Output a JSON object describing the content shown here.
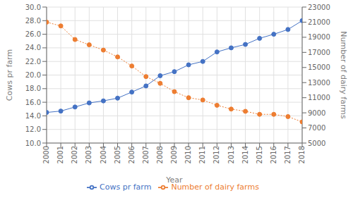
{
  "chart_data": {
    "type": "line",
    "xlabel": "Year",
    "ylabel": "Cows pr farm",
    "y2label": "Number of dairy farms",
    "x": [
      2000,
      2001,
      2002,
      2003,
      2004,
      2005,
      2006,
      2007,
      2008,
      2009,
      2010,
      2011,
      2012,
      2013,
      2014,
      2015,
      2016,
      2017,
      2018
    ],
    "xlim": [
      2000,
      2018
    ],
    "xticks": [
      2000,
      2001,
      2002,
      2003,
      2004,
      2005,
      2006,
      2007,
      2008,
      2009,
      2010,
      2011,
      2012,
      2013,
      2014,
      2015,
      2016,
      2017,
      2018
    ],
    "ylim": [
      10.0,
      30.0
    ],
    "yticks": [
      {
        "value": 10.0,
        "label": "10.0"
      },
      {
        "value": 12.0,
        "label": "12.0"
      },
      {
        "value": 14.0,
        "label": "14.0"
      },
      {
        "value": 16.0,
        "label": "16.0"
      },
      {
        "value": 18.0,
        "label": "18.0"
      },
      {
        "value": 20.0,
        "label": "20.0"
      },
      {
        "value": 22.0,
        "label": "22.0"
      },
      {
        "value": 24.0,
        "label": "24.0"
      },
      {
        "value": 26.0,
        "label": "26.0"
      },
      {
        "value": 28.0,
        "label": "28.0"
      },
      {
        "value": 30.0,
        "label": "30.0"
      }
    ],
    "y2lim": [
      5000,
      23000
    ],
    "y2ticks": [
      5000,
      7000,
      9000,
      11000,
      13000,
      15000,
      17000,
      19000,
      21000,
      23000
    ],
    "series": [
      {
        "name": "Cows pr farm",
        "color": "#4472C4",
        "marker": "circle",
        "line_style": "solid",
        "values": [
          14.5,
          14.7,
          15.3,
          15.9,
          16.2,
          16.6,
          17.5,
          18.4,
          19.9,
          20.5,
          21.5,
          22.0,
          23.4,
          24.0,
          24.5,
          25.4,
          26.0,
          26.7,
          28.0
        ]
      },
      {
        "name": "Number of dairy farms",
        "color": "#ED7D31",
        "marker": "circle",
        "line_style": "dotted",
        "axis": "y2",
        "values": [
          21000,
          20500,
          18700,
          18000,
          17300,
          16400,
          15200,
          13800,
          12900,
          11800,
          11000,
          10700,
          10000,
          9500,
          9200,
          8800,
          8800,
          8500,
          7800
        ]
      }
    ],
    "grid": true,
    "legend": "bottom"
  }
}
